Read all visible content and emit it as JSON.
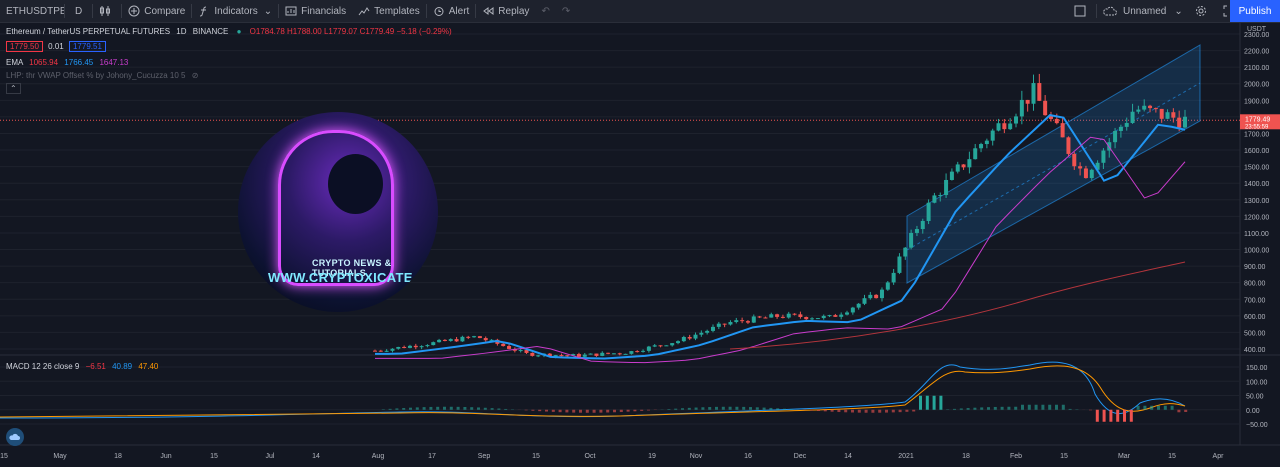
{
  "toolbar": {
    "symbol": "ETHUSDTPEF",
    "interval": "D",
    "compare": "Compare",
    "indicators": "Indicators",
    "financials": "Financials",
    "templates": "Templates",
    "alert": "Alert",
    "replay": "Replay",
    "layout_name": "Unnamed",
    "publish": "Publish"
  },
  "legend": {
    "title": "Ethereum / TetherUS PERPETUAL FUTURES",
    "interval": "1D",
    "exchange": "BINANCE",
    "o": "O1784.78",
    "h": "H1788.00",
    "l": "L1779.07",
    "c": "C1779.49",
    "change": "−5.18 (−0.29%)",
    "bid": "1779.50",
    "spread": "0.01",
    "ask": "1779.51",
    "ema_label": "EMA",
    "ema1": "1065.94",
    "ema2": "1766.45",
    "ema3": "1647.13",
    "lhp": "LHP: thr VWAP Offset % by Johony_Cucuzza 10 5"
  },
  "macd": {
    "label": "MACD 12 26 close 9",
    "hist": "−6.51",
    "macd": "40.89",
    "signal": "47.40"
  },
  "price_axis": {
    "unit": "USDT",
    "ticks": [
      "2300.00",
      "2200.00",
      "2100.00",
      "2000.00",
      "1900.00",
      "1800.00",
      "1700.00",
      "1600.00",
      "1500.00",
      "1400.00",
      "1300.00",
      "1200.00",
      "1100.00",
      "1000.00",
      "900.00",
      "800.00",
      "700.00",
      "600.00",
      "500.00",
      "400.00"
    ],
    "last_price": "1779.49",
    "countdown": "23:55:59"
  },
  "macd_axis": {
    "ticks": [
      "150.00",
      "100.00",
      "50.00",
      "0.00",
      "−50.00"
    ]
  },
  "time_axis": {
    "ticks": [
      "15",
      "May",
      "18",
      "Jun",
      "15",
      "Jul",
      "14",
      "Aug",
      "17",
      "Sep",
      "15",
      "Oct",
      "19",
      "Nov",
      "16",
      "Dec",
      "14",
      "2021",
      "18",
      "Feb",
      "15",
      "Mar",
      "15",
      "Apr"
    ]
  },
  "logo": {
    "line1": "CRYPTO NEWS & TUTORIALS",
    "line2": "WWW.CRYPTOXICATE.COM"
  },
  "colors": {
    "background": "#131722",
    "up": "#26a69a",
    "down": "#ef5350",
    "ema_blue": "#2196f3",
    "ema_purple": "#c93ccc",
    "ema_red": "#b2353c",
    "macd_line": "#2196f3",
    "signal_line": "#ff9800",
    "channel": "#2196f3"
  },
  "chart_data": {
    "type": "candlestick",
    "series_price": [
      {
        "x": "2020-08",
        "close": 390
      },
      {
        "x": "2020-08-17",
        "close": 430
      },
      {
        "x": "2020-09",
        "close": 475
      },
      {
        "x": "2020-09-15",
        "close": 370
      },
      {
        "x": "2020-10",
        "close": 360
      },
      {
        "x": "2020-10-19",
        "close": 380
      },
      {
        "x": "2020-11",
        "close": 450
      },
      {
        "x": "2020-11-16",
        "close": 560
      },
      {
        "x": "2020-12",
        "close": 600
      },
      {
        "x": "2020-12-14",
        "close": 590
      },
      {
        "x": "2021-01",
        "close": 740
      },
      {
        "x": "2021-01-18",
        "close": 1300
      },
      {
        "x": "2021-02",
        "close": 1650
      },
      {
        "x": "2021-02-15",
        "close": 1950
      },
      {
        "x": "2021-02-28",
        "close": 1450
      },
      {
        "x": "2021-03-15",
        "close": 1850
      },
      {
        "x": "2021-03-24",
        "close": 1779.49
      }
    ]
  }
}
